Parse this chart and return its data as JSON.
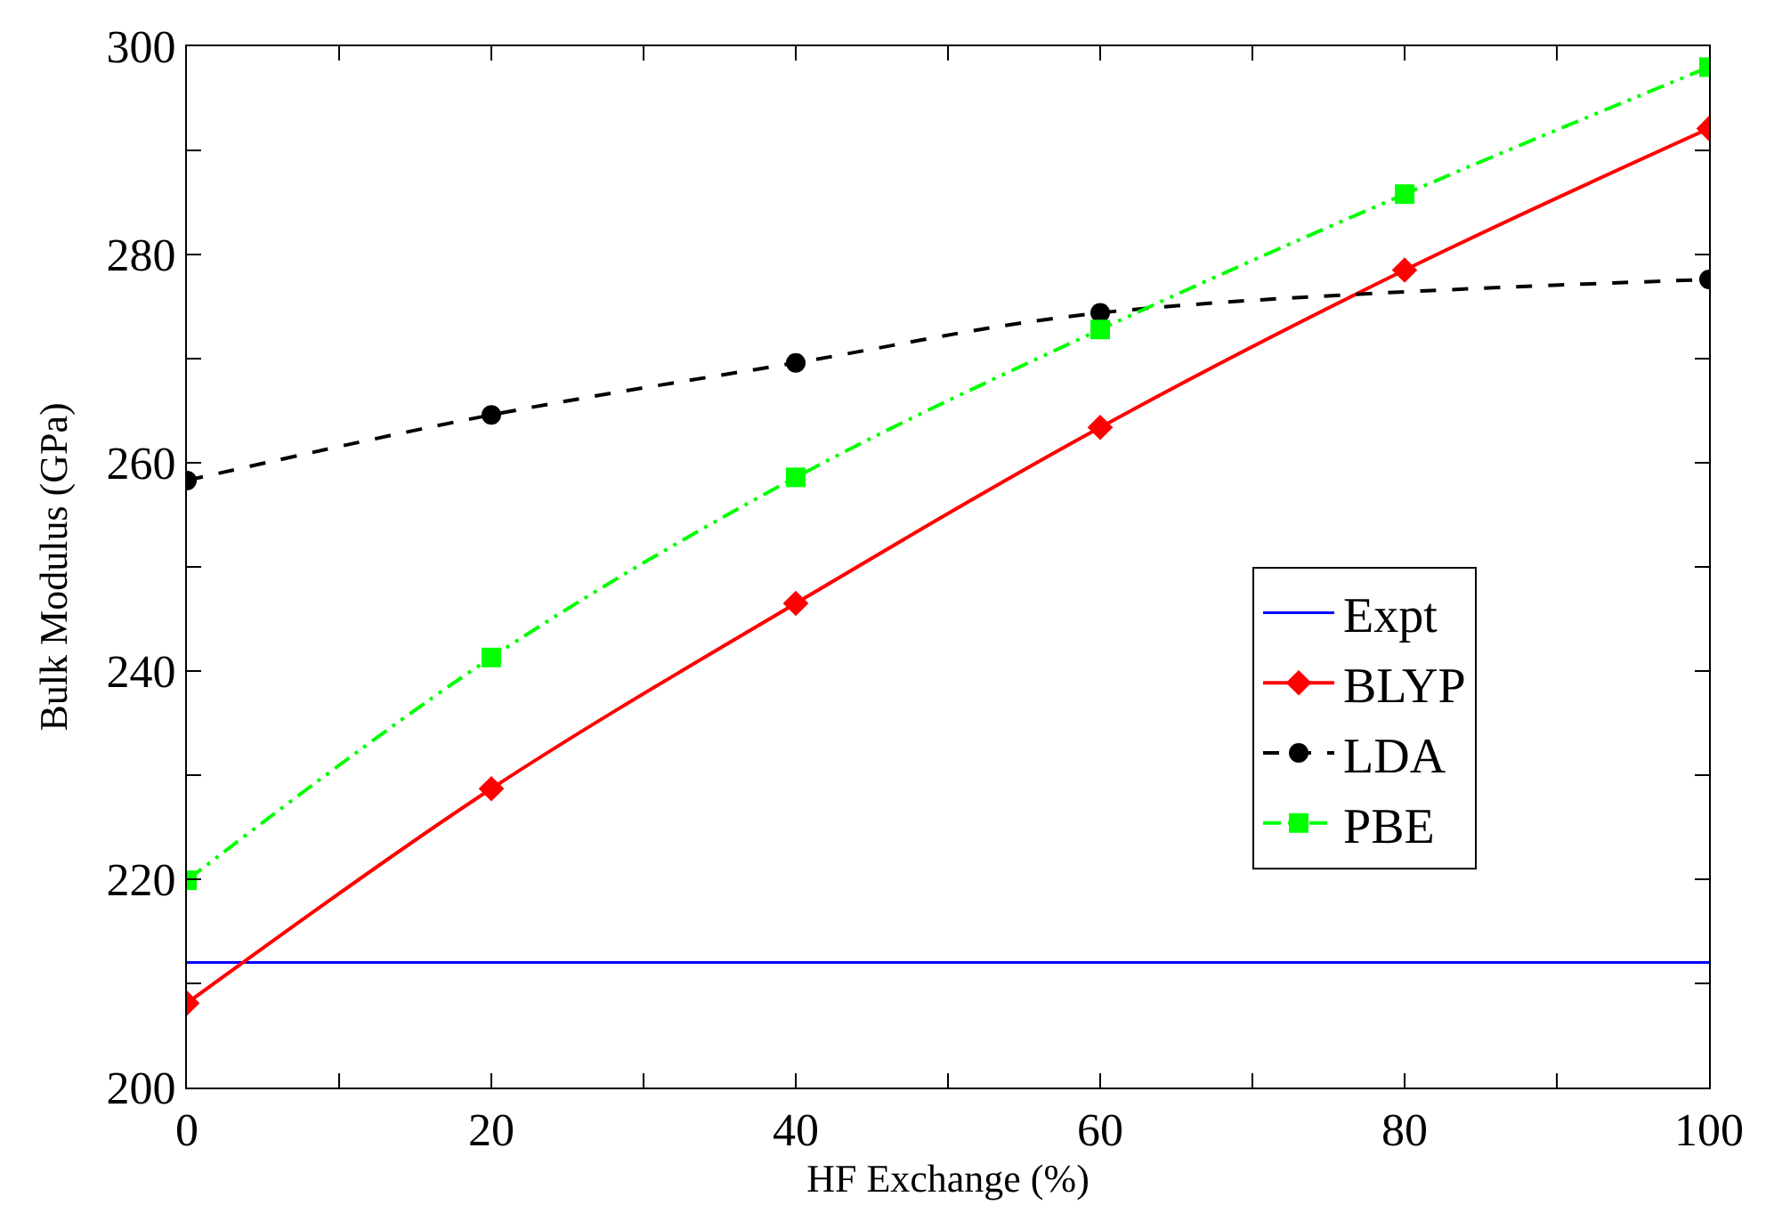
{
  "chart_data": {
    "type": "line",
    "xlabel": "HF Exchange (%)",
    "ylabel": "Bulk Modulus (GPa)",
    "xlim": [
      0,
      100
    ],
    "ylim": [
      200,
      300
    ],
    "xticks": [
      0,
      {
        "value": 10,
        "label": null
      },
      20,
      {
        "value": 30,
        "label": null
      },
      40,
      {
        "value": 50,
        "label": null
      },
      60,
      {
        "value": 70,
        "label": null
      },
      80,
      {
        "value": 90,
        "label": null
      },
      100
    ],
    "yticks": [
      200,
      {
        "value": 210,
        "label": null
      },
      220,
      {
        "value": 230,
        "label": null
      },
      240,
      {
        "value": 250,
        "label": null
      },
      260,
      {
        "value": 270,
        "label": null
      },
      280,
      {
        "value": 290,
        "label": null
      },
      300
    ],
    "legend": "right",
    "series": [
      {
        "name": "Expt",
        "color": "#0000ff",
        "x": [
          0,
          100
        ],
        "values": [
          212.0,
          212.0
        ],
        "marker": "none",
        "line_style": "solid"
      },
      {
        "name": "BLYP",
        "color": "#ff0000",
        "x": [
          0,
          20,
          40,
          60,
          80,
          100
        ],
        "values": [
          208.1,
          228.7,
          246.5,
          263.4,
          278.5,
          292.1
        ],
        "marker": "diamond",
        "line_style": "solid"
      },
      {
        "name": "LDA",
        "color": "#000000",
        "x": [
          0,
          20,
          40,
          60,
          100
        ],
        "values": [
          258.3,
          264.6,
          269.6,
          274.4,
          277.6
        ],
        "marker": "circle",
        "line_style": "dashed"
      },
      {
        "name": "PBE",
        "color": "#00ff00",
        "x": [
          0,
          20,
          40,
          60,
          80,
          100
        ],
        "values": [
          219.9,
          241.3,
          258.6,
          272.8,
          285.8,
          298.0
        ],
        "marker": "square",
        "line_style": "dashdot"
      }
    ]
  }
}
